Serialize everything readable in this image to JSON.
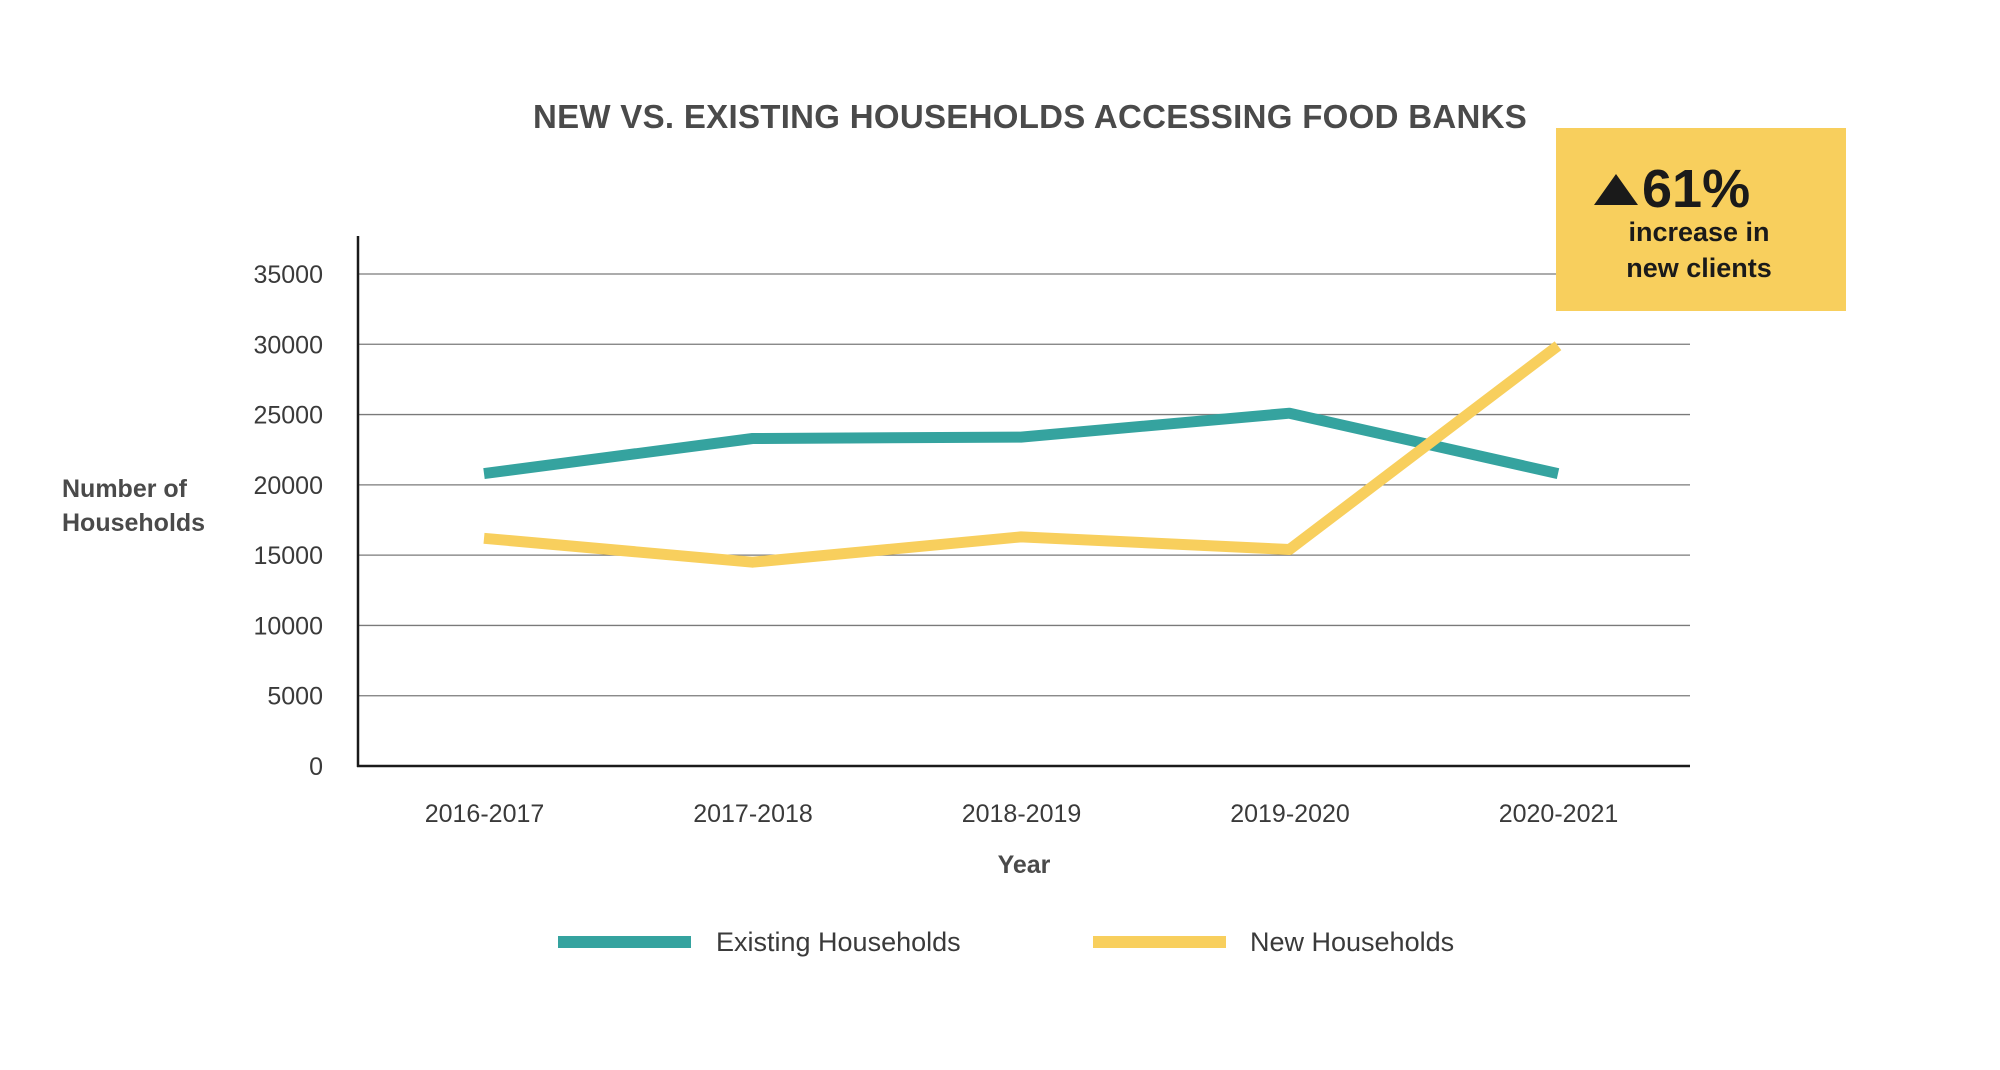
{
  "chart_data": {
    "type": "line",
    "title": "NEW VS. EXISTING HOUSEHOLDS ACCESSING FOOD BANKS",
    "xlabel": "Year",
    "ylabel_lines": [
      "Number of",
      "Households"
    ],
    "categories": [
      "2016-2017",
      "2017-2018",
      "2018-2019",
      "2019-2020",
      "2020-2021"
    ],
    "y_ticks": [
      0,
      5000,
      10000,
      15000,
      20000,
      25000,
      30000,
      35000
    ],
    "ylim": [
      0,
      35000
    ],
    "grid": true,
    "legend_position": "bottom",
    "series": [
      {
        "name": "Existing Households",
        "color": "#35a39f",
        "values": [
          20800,
          23300,
          23400,
          25100,
          20800
        ]
      },
      {
        "name": "New Households",
        "color": "#f8cf5d",
        "values": [
          16200,
          14500,
          16300,
          15400,
          29900
        ]
      }
    ],
    "callout": {
      "value": "61%",
      "line1": "increase in",
      "line2": "new clients",
      "background": "#f8cf5d",
      "icon": "up-triangle-icon"
    }
  }
}
